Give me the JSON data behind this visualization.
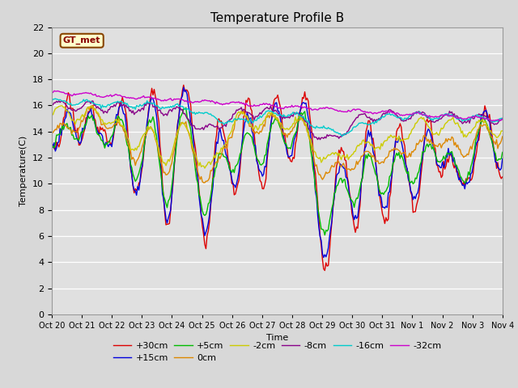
{
  "title": "Temperature Profile B",
  "xlabel": "Time",
  "ylabel": "Temperature(C)",
  "ylim": [
    0,
    22
  ],
  "yticks": [
    0,
    2,
    4,
    6,
    8,
    10,
    12,
    14,
    16,
    18,
    20,
    22
  ],
  "x_labels": [
    "Oct 20",
    "Oct 21",
    "Oct 22",
    "Oct 23",
    "Oct 24",
    "Oct 25",
    "Oct 26",
    "Oct 27",
    "Oct 28",
    "Oct 29",
    "Oct 30",
    "Oct 31",
    "Nov 1",
    "Nov 2",
    "Nov 3",
    "Nov 4"
  ],
  "series_labels": [
    "+30cm",
    "+15cm",
    "+5cm",
    "0cm",
    "-2cm",
    "-8cm",
    "-16cm",
    "-32cm"
  ],
  "series_colors": [
    "#dd0000",
    "#0000dd",
    "#00bb00",
    "#dd8800",
    "#cccc00",
    "#880088",
    "#00cccc",
    "#cc00cc"
  ],
  "annotation_text": "GT_met",
  "annotation_bg": "#ffffcc",
  "annotation_border": "#884400",
  "annotation_text_color": "#880000",
  "fig_bg": "#d8d8d8",
  "plot_bg": "#e0e0e0",
  "title_fontsize": 11,
  "n_points": 384
}
